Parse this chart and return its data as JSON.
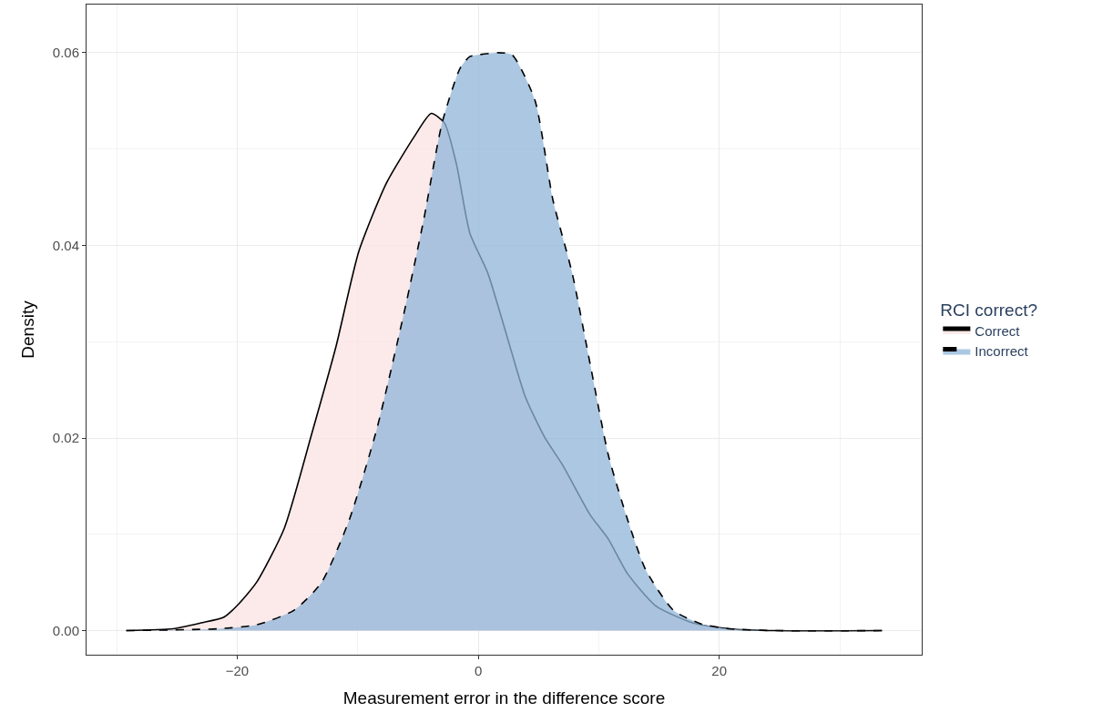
{
  "chart_data": {
    "type": "area",
    "xlabel": "Measurement error in the difference score",
    "ylabel": "Density",
    "legend_title": "RCI correct?",
    "legend": "right",
    "grid": true,
    "xlim": [
      -32.5,
      36.8
    ],
    "ylim": [
      -0.0025,
      0.065
    ],
    "xticks": [
      {
        "value": -20,
        "label": "−20"
      },
      0,
      20
    ],
    "yticks": [
      {
        "value": 0,
        "label": "0.00"
      },
      {
        "value": 0.02,
        "label": "0.02"
      },
      {
        "value": 0.04,
        "label": "0.04"
      },
      {
        "value": 0.06,
        "label": "0.06"
      }
    ],
    "series": [
      {
        "name": "Correct",
        "color": "#f9e3e2",
        "line_style": "solid",
        "x": [
          -29.2,
          -25.3,
          -23,
          -21.1,
          -20,
          -18.4,
          -16.1,
          -13.8,
          -11.8,
          -9.9,
          -7.6,
          -5.3,
          -3.9,
          -2.8,
          -1.8,
          -0.7,
          0.8,
          2.4,
          3.9,
          5.5,
          7,
          9.3,
          10.8,
          12.4,
          14.7,
          17.8,
          20.8,
          24.7,
          33.5
        ],
        "values": [
          0,
          0.0002,
          0.0008,
          0.0014,
          0.0026,
          0.005,
          0.0106,
          0.0205,
          0.0295,
          0.0394,
          0.0465,
          0.0513,
          0.0537,
          0.0527,
          0.0484,
          0.0413,
          0.0371,
          0.0305,
          0.0243,
          0.0201,
          0.0172,
          0.012,
          0.0095,
          0.0059,
          0.0026,
          0.0008,
          0.0002,
          0,
          0
        ]
      },
      {
        "name": "Incorrect",
        "color": "#8fb4d8",
        "line_style": "dashed",
        "x": [
          -29.2,
          -21.5,
          -18.4,
          -15.3,
          -13,
          -10.7,
          -8.4,
          -6.1,
          -4.5,
          -3,
          -1.5,
          -0.7,
          0.1,
          1.6,
          2.8,
          4.7,
          6.2,
          7.8,
          9.3,
          10.8,
          12.4,
          13.9,
          16.2,
          18.5,
          20.8,
          24.7,
          33.5
        ],
        "values": [
          0,
          0.0002,
          0.0006,
          0.0021,
          0.005,
          0.0115,
          0.021,
          0.0333,
          0.0428,
          0.0527,
          0.0584,
          0.0596,
          0.0598,
          0.06,
          0.0598,
          0.0551,
          0.0447,
          0.0371,
          0.0276,
          0.0182,
          0.0115,
          0.0063,
          0.0021,
          0.0007,
          0.0002,
          0,
          0
        ]
      }
    ]
  }
}
